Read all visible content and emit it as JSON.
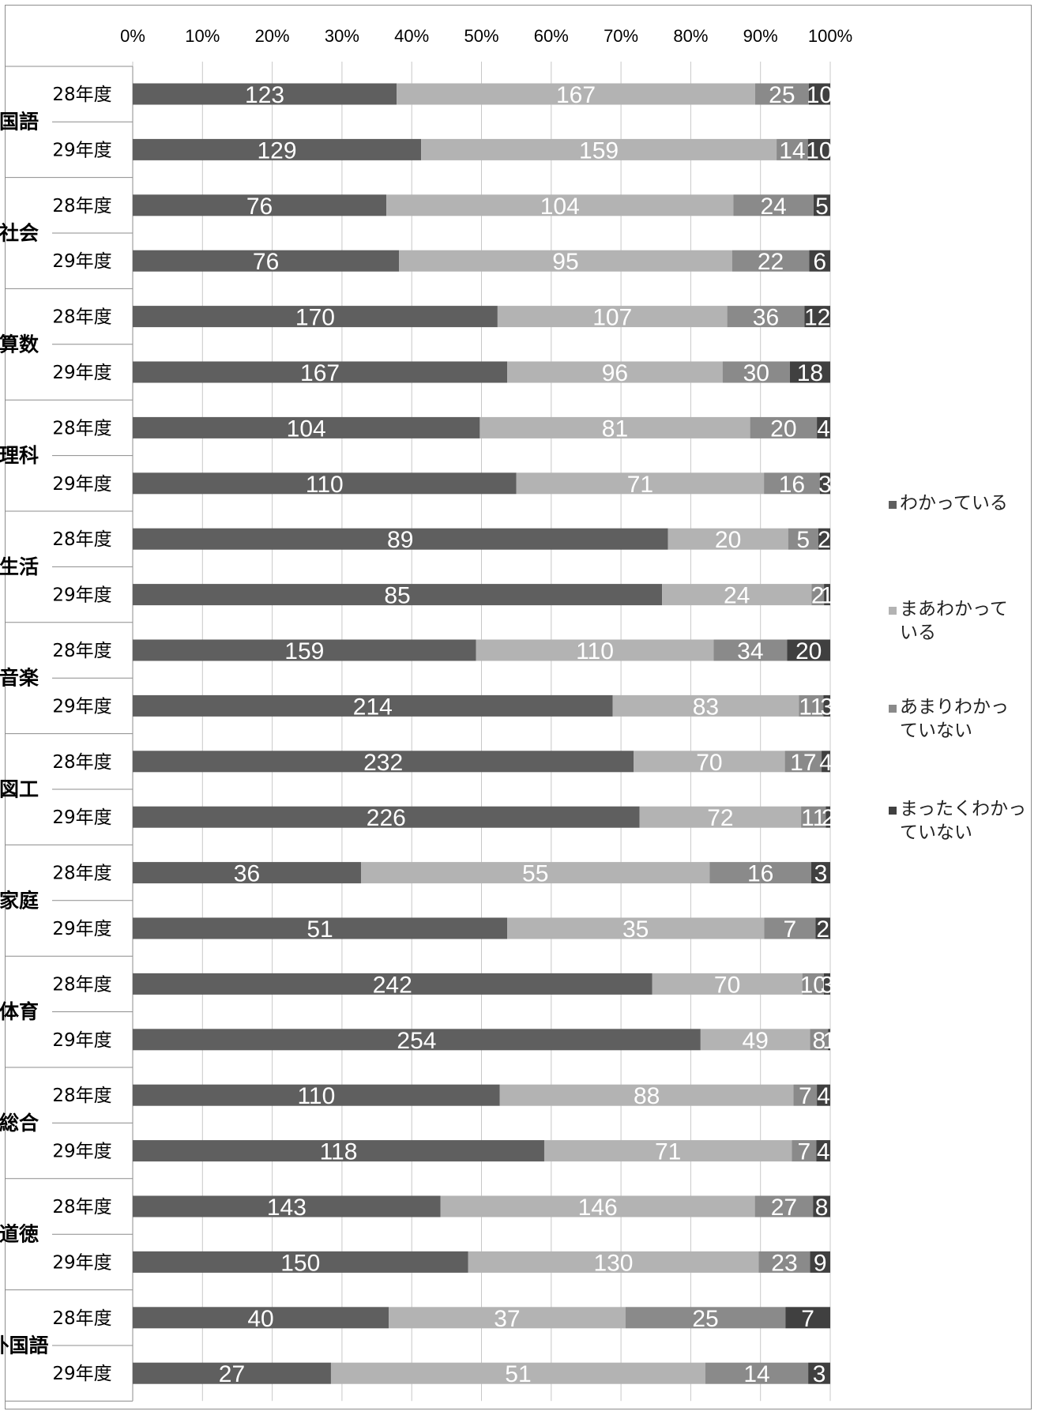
{
  "colors": {
    "wakatteiru": "#5f5f5f",
    "maa": "#b3b3b3",
    "amari": "#8a8a8a",
    "mattaku": "#404040",
    "grid": "#c8c8c8",
    "axis": "#8c8c8c"
  },
  "chart_data": {
    "type": "bar",
    "orientation": "horizontal",
    "stacked": "percent",
    "title": "",
    "xlabel": "",
    "ylabel": "",
    "xlim": [
      0,
      100
    ],
    "x_ticks": [
      "0%",
      "10%",
      "20%",
      "30%",
      "40%",
      "50%",
      "60%",
      "70%",
      "80%",
      "90%",
      "100%"
    ],
    "grid": true,
    "legend_position": "right",
    "series": [
      {
        "name": "わかっている",
        "color_key": "wakatteiru"
      },
      {
        "name": "まあわかっている",
        "color_key": "maa"
      },
      {
        "name": "あまりわかっていない",
        "color_key": "amari"
      },
      {
        "name": "まったくわかっていない",
        "color_key": "mattaku"
      }
    ],
    "legend": [
      "わかっている",
      "まあわかって\nいる",
      "あまりわかっ\nていない",
      "まったくわかっ\nていない"
    ],
    "groups": [
      {
        "subject": "国語",
        "rows": [
          {
            "year": "28年度",
            "values": [
              123,
              167,
              25,
              10
            ]
          },
          {
            "year": "29年度",
            "values": [
              129,
              159,
              14,
              10
            ]
          }
        ]
      },
      {
        "subject": "社会",
        "rows": [
          {
            "year": "28年度",
            "values": [
              76,
              104,
              24,
              5
            ]
          },
          {
            "year": "29年度",
            "values": [
              76,
              95,
              22,
              6
            ]
          }
        ]
      },
      {
        "subject": "算数",
        "rows": [
          {
            "year": "28年度",
            "values": [
              170,
              107,
              36,
              12
            ]
          },
          {
            "year": "29年度",
            "values": [
              167,
              96,
              30,
              18
            ]
          }
        ]
      },
      {
        "subject": "理科",
        "rows": [
          {
            "year": "28年度",
            "values": [
              104,
              81,
              20,
              4
            ]
          },
          {
            "year": "29年度",
            "values": [
              110,
              71,
              16,
              3
            ]
          }
        ]
      },
      {
        "subject": "生活",
        "rows": [
          {
            "year": "28年度",
            "values": [
              89,
              20,
              5,
              2
            ]
          },
          {
            "year": "29年度",
            "values": [
              85,
              24,
              2,
              1
            ]
          }
        ]
      },
      {
        "subject": "音楽",
        "rows": [
          {
            "year": "28年度",
            "values": [
              159,
              110,
              34,
              20
            ]
          },
          {
            "year": "29年度",
            "values": [
              214,
              83,
              11,
              3
            ]
          }
        ]
      },
      {
        "subject": "図工",
        "rows": [
          {
            "year": "28年度",
            "values": [
              232,
              70,
              17,
              4
            ]
          },
          {
            "year": "29年度",
            "values": [
              226,
              72,
              11,
              2
            ]
          }
        ]
      },
      {
        "subject": "家庭",
        "rows": [
          {
            "year": "28年度",
            "values": [
              36,
              55,
              16,
              3
            ]
          },
          {
            "year": "29年度",
            "values": [
              51,
              35,
              7,
              2
            ]
          }
        ]
      },
      {
        "subject": "体育",
        "rows": [
          {
            "year": "28年度",
            "values": [
              242,
              70,
              10,
              3
            ]
          },
          {
            "year": "29年度",
            "values": [
              254,
              49,
              8,
              1
            ]
          }
        ]
      },
      {
        "subject": "総合",
        "rows": [
          {
            "year": "28年度",
            "values": [
              110,
              88,
              7,
              4
            ]
          },
          {
            "year": "29年度",
            "values": [
              118,
              71,
              7,
              4
            ]
          }
        ]
      },
      {
        "subject": "道徳",
        "rows": [
          {
            "year": "28年度",
            "values": [
              143,
              146,
              27,
              8
            ]
          },
          {
            "year": "29年度",
            "values": [
              150,
              130,
              23,
              9
            ]
          }
        ]
      },
      {
        "subject": "外国語",
        "rows": [
          {
            "year": "28年度",
            "values": [
              40,
              37,
              25,
              7
            ]
          },
          {
            "year": "29年度",
            "values": [
              27,
              51,
              14,
              3
            ]
          }
        ]
      }
    ]
  }
}
